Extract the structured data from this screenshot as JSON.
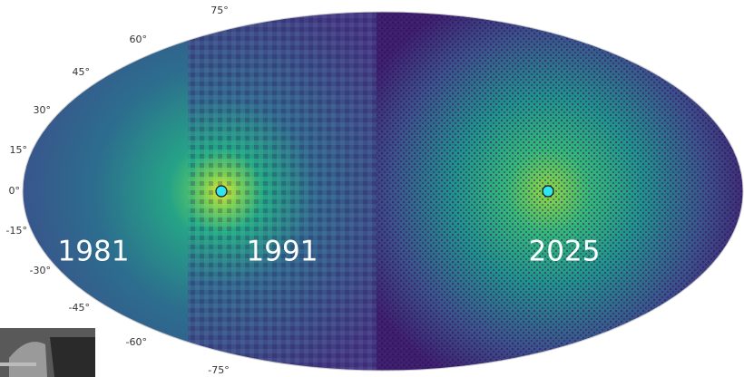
{
  "latitude_labels": [
    "75°",
    "60°",
    "45°",
    "30°",
    "15°",
    "0°",
    "-15°",
    "-30°",
    "-45°",
    "-60°",
    "-75°"
  ],
  "panels": [
    {
      "label": "1981"
    },
    {
      "label": "1991"
    },
    {
      "label": "2025"
    }
  ]
}
